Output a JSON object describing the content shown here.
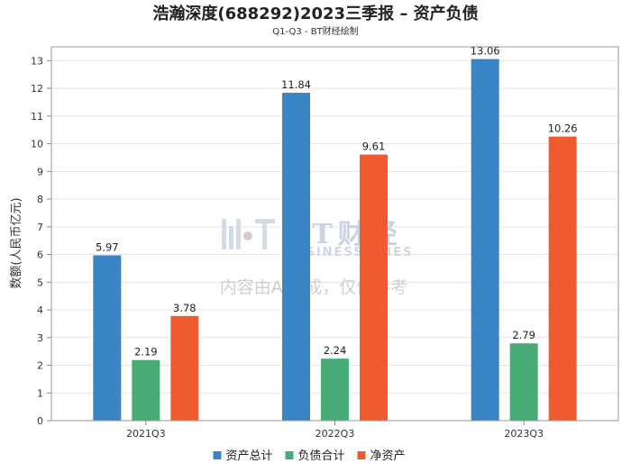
{
  "chart_data": {
    "type": "bar",
    "title": "浩瀚深度(688292)2023三季报 – 资产负债",
    "subtitle": "Q1-Q3 - BT财经绘制",
    "xlabel": "",
    "ylabel": "数额(人民币亿元)",
    "ylim": [
      0,
      13.5
    ],
    "yticks": [
      0,
      1,
      2,
      3,
      4,
      5,
      6,
      7,
      8,
      9,
      10,
      11,
      12,
      13
    ],
    "grid": true,
    "legend_position": "bottom",
    "categories": [
      "2021Q3",
      "2022Q3",
      "2023Q3"
    ],
    "series": [
      {
        "name": "资产总计",
        "color": "#3a83c4",
        "values": [
          5.97,
          11.84,
          13.06
        ]
      },
      {
        "name": "负债合计",
        "color": "#48ab75",
        "values": [
          2.19,
          2.24,
          2.79
        ]
      },
      {
        "name": "净资产",
        "color": "#ef5a2e",
        "values": [
          3.78,
          9.61,
          10.26
        ]
      }
    ]
  },
  "watermark": {
    "logo_text": "BT财经",
    "logo_sub": "BUSINESSTIMES",
    "note": "内容由AI生成，仅供参考"
  }
}
